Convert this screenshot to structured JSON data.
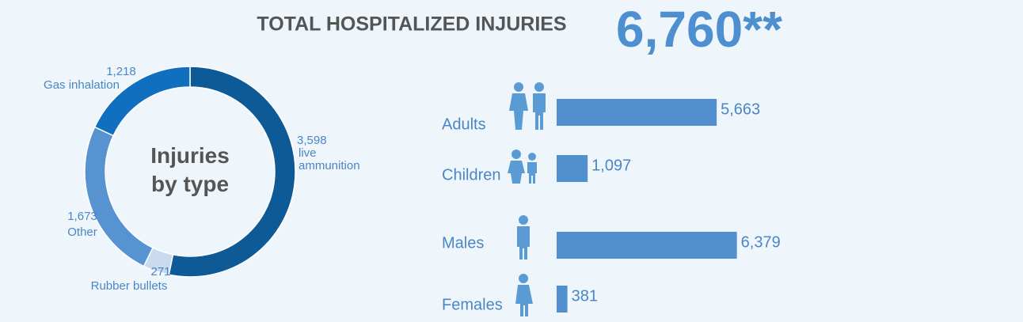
{
  "title": "TOTAL HOSPITALIZED INJURIES",
  "total_label": "6,760**",
  "chart_data": [
    {
      "type": "pie",
      "center_label": "Injuries\nby type",
      "categories": [
        "live\nammunition",
        "Rubber bullets",
        "Other",
        "Gas inhalation"
      ],
      "values": [
        3598,
        271,
        1673,
        1218
      ],
      "value_labels": [
        "3,598",
        "271",
        "1,673",
        "1,218"
      ],
      "colors": [
        "#0d5a97",
        "#c9d9ee",
        "#5693d0",
        "#1070bf"
      ]
    },
    {
      "type": "hbar",
      "categories": [
        "Adults",
        "Children",
        "Males",
        "Females"
      ],
      "values": [
        5663,
        1097,
        6379,
        381
      ],
      "value_labels": [
        "5,663",
        "1,097",
        "6,379",
        "381"
      ],
      "color": "#528fcf",
      "xlim": [
        0,
        6500
      ]
    }
  ]
}
